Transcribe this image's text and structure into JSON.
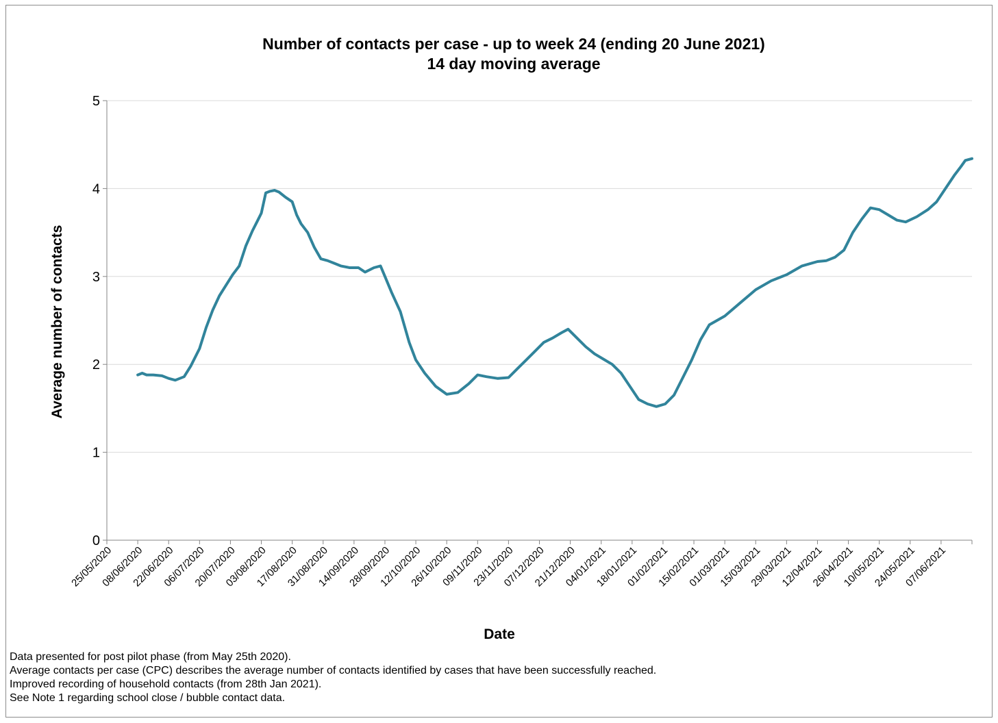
{
  "chart_data": {
    "type": "line",
    "title": "Number of contacts per case - up to week 24 (ending 20 June 2021)",
    "subtitle": "14 day moving average",
    "xlabel": "Date",
    "ylabel": "Average number of contacts",
    "ylim": [
      0,
      5
    ],
    "yticks": [
      "0",
      "1",
      "2",
      "3",
      "4",
      "5"
    ],
    "xlim": [
      "2020-05-25",
      "2021-06-21"
    ],
    "xtick_dates": [
      "2020-05-25",
      "2020-06-08",
      "2020-06-22",
      "2020-07-06",
      "2020-07-20",
      "2020-08-03",
      "2020-08-17",
      "2020-08-31",
      "2020-09-14",
      "2020-09-28",
      "2020-10-12",
      "2020-10-26",
      "2020-11-09",
      "2020-11-23",
      "2020-12-07",
      "2020-12-21",
      "2021-01-04",
      "2021-01-18",
      "2021-02-01",
      "2021-02-15",
      "2021-03-01",
      "2021-03-15",
      "2021-03-29",
      "2021-04-12",
      "2021-04-26",
      "2021-05-10",
      "2021-05-24",
      "2021-06-07"
    ],
    "xtick_labels": [
      "25/05/2020",
      "08/06/2020",
      "22/06/2020",
      "06/07/2020",
      "20/07/2020",
      "03/08/2020",
      "17/08/2020",
      "31/08/2020",
      "14/09/2020",
      "28/09/2020",
      "12/10/2020",
      "26/10/2020",
      "09/11/2020",
      "23/11/2020",
      "07/12/2020",
      "21/12/2020",
      "04/01/2021",
      "18/01/2021",
      "01/02/2021",
      "15/02/2021",
      "01/03/2021",
      "15/03/2021",
      "29/03/2021",
      "12/04/2021",
      "26/04/2021",
      "10/05/2021",
      "24/05/2021",
      "07/06/2021"
    ],
    "grid": true,
    "legend": "none",
    "series": [
      {
        "color": "#31849b",
        "x": [
          "2020-06-08",
          "2020-06-10",
          "2020-06-12",
          "2020-06-15",
          "2020-06-19",
          "2020-06-22",
          "2020-06-25",
          "2020-06-29",
          "2020-07-02",
          "2020-07-06",
          "2020-07-09",
          "2020-07-12",
          "2020-07-15",
          "2020-07-18",
          "2020-07-21",
          "2020-07-24",
          "2020-07-27",
          "2020-07-30",
          "2020-08-01",
          "2020-08-03",
          "2020-08-05",
          "2020-08-07",
          "2020-08-09",
          "2020-08-11",
          "2020-08-14",
          "2020-08-17",
          "2020-08-19",
          "2020-08-21",
          "2020-08-24",
          "2020-08-27",
          "2020-08-30",
          "2020-09-02",
          "2020-09-05",
          "2020-09-08",
          "2020-09-12",
          "2020-09-16",
          "2020-09-19",
          "2020-09-23",
          "2020-09-26",
          "2020-09-28",
          "2020-10-01",
          "2020-10-05",
          "2020-10-09",
          "2020-10-12",
          "2020-10-16",
          "2020-10-21",
          "2020-10-26",
          "2020-10-31",
          "2020-11-05",
          "2020-11-09",
          "2020-11-13",
          "2020-11-18",
          "2020-11-23",
          "2020-11-27",
          "2020-12-01",
          "2020-12-05",
          "2020-12-09",
          "2020-12-13",
          "2020-12-17",
          "2020-12-20",
          "2020-12-24",
          "2020-12-28",
          "2021-01-01",
          "2021-01-05",
          "2021-01-09",
          "2021-01-13",
          "2021-01-17",
          "2021-01-21",
          "2021-01-25",
          "2021-01-29",
          "2021-02-02",
          "2021-02-06",
          "2021-02-10",
          "2021-02-14",
          "2021-02-18",
          "2021-02-22",
          "2021-03-01",
          "2021-03-08",
          "2021-03-15",
          "2021-03-22",
          "2021-03-29",
          "2021-04-05",
          "2021-04-12",
          "2021-04-16",
          "2021-04-20",
          "2021-04-24",
          "2021-04-28",
          "2021-05-02",
          "2021-05-06",
          "2021-05-10",
          "2021-05-14",
          "2021-05-18",
          "2021-05-22",
          "2021-05-27",
          "2021-06-01",
          "2021-06-05",
          "2021-06-09",
          "2021-06-13",
          "2021-06-16",
          "2021-06-18",
          "2021-06-21"
        ],
        "y": [
          1.88,
          1.9,
          1.88,
          1.88,
          1.87,
          1.84,
          1.82,
          1.86,
          1.98,
          2.18,
          2.42,
          2.62,
          2.78,
          2.9,
          3.02,
          3.12,
          3.35,
          3.52,
          3.62,
          3.72,
          3.95,
          3.97,
          3.98,
          3.96,
          3.9,
          3.85,
          3.7,
          3.6,
          3.5,
          3.33,
          3.2,
          3.18,
          3.15,
          3.12,
          3.1,
          3.1,
          3.05,
          3.1,
          3.12,
          3.0,
          2.82,
          2.6,
          2.25,
          2.05,
          1.9,
          1.75,
          1.66,
          1.68,
          1.78,
          1.88,
          1.86,
          1.84,
          1.85,
          1.95,
          2.05,
          2.15,
          2.25,
          2.3,
          2.36,
          2.4,
          2.3,
          2.2,
          2.12,
          2.06,
          2.0,
          1.9,
          1.75,
          1.6,
          1.55,
          1.52,
          1.55,
          1.65,
          1.85,
          2.05,
          2.28,
          2.45,
          2.55,
          2.7,
          2.85,
          2.95,
          3.02,
          3.12,
          3.17,
          3.18,
          3.22,
          3.3,
          3.5,
          3.65,
          3.78,
          3.76,
          3.7,
          3.64,
          3.62,
          3.68,
          3.76,
          3.85,
          4.0,
          4.15,
          4.25,
          4.32,
          4.34
        ]
      }
    ]
  },
  "notes": [
    "Data presented  for post pilot phase (from May 25th 2020).",
    "Average contacts per case (CPC) describes the average number of contacts identified by cases that have been successfully reached.",
    "Improved recording of household contacts (from 28th Jan 2021).",
    "See Note 1 regarding school close / bubble contact data."
  ]
}
